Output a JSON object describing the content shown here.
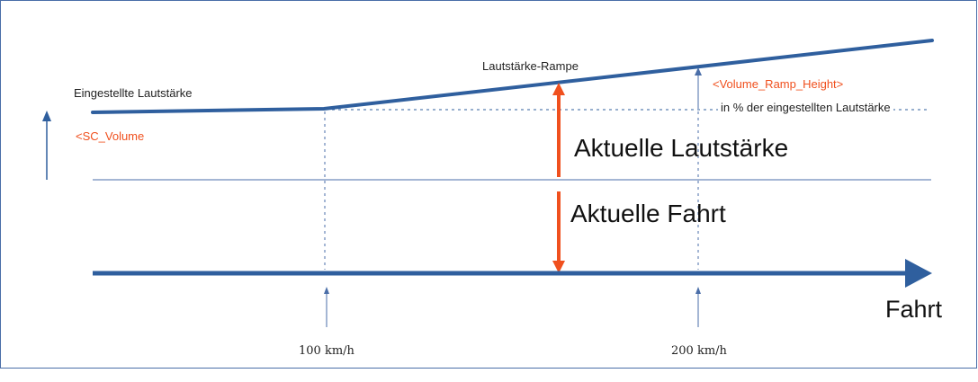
{
  "colors": {
    "line": "#2f5f9e",
    "thin": "#4a6ea8",
    "accent": "#f0501e",
    "text": "#222222"
  },
  "labels": {
    "set_volume": "Eingestellte Lautstärke",
    "sc_volume": "<SC_Volume",
    "ramp": "Lautstärke-Rampe",
    "ramp_height": "<Volume_Ramp_Height>",
    "percent_note": "in % der eingestellten Lautstärke",
    "current_volume": "Aktuelle Lautstärke",
    "current_speed": "Aktuelle Fahrt",
    "x_axis": "Fahrt",
    "speed_100": "100 km/h",
    "speed_200": "200 km/h"
  },
  "icons": {
    "volume_axis": "arrow-up-icon",
    "current_arrow": "double-arrow-icon",
    "x_axis_arrow": "arrow-right-icon"
  }
}
